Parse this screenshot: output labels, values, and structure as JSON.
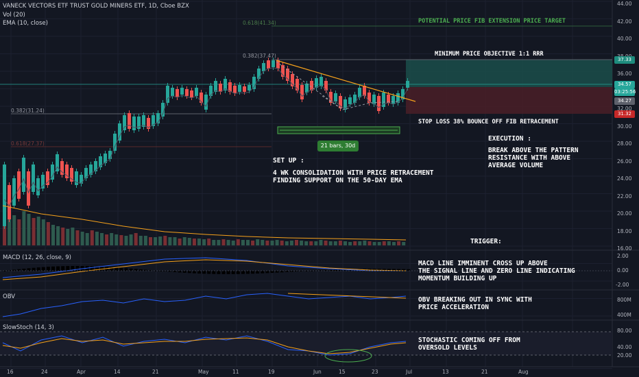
{
  "header": {
    "title": "VANECK VECTORS ETF TRUST GOLD MINERS ETF, 1D, Cboe BZX",
    "vol": "Vol (20)",
    "ema": "EMA (10, close)"
  },
  "fib": {
    "top": "0.618(41.34)",
    "r382": "0.382(37.47)",
    "lower382": "0.382(31.24)",
    "lower618": "0.618(27.37)"
  },
  "annotations": {
    "fib_target": "POTENTIAL PRICE FIB EXTENSION PRICE TARGET",
    "min_objective": "MINIMUM PRICE OBJECTIVE 1:1 RRR",
    "stop_loss": "STOP LOSS 38% BOUNCE OFF FIB RETRACEMENT",
    "bars_label": "21 bars, 30d",
    "execution": "EXECUTION :",
    "execution_text": "BREAK ABOVE THE PATTERN\nRESISTANCE WITH ABOVE\nAVERAGE VOLUME",
    "setup": "SET UP :",
    "setup_text": "4 WK CONSOLIDATION WITH PRICE RETRACEMENT\nFINDING SUPPORT ON THE 50-DAY EMA",
    "trigger": "TRIGGER:",
    "macd_text": "MACD LINE IMMINENT CROSS UP ABOVE\nTHE SIGNAL LINE AND ZERO LINE INDICATING\nMOMENTUM BUILDING UP",
    "obv_text": "OBV BREAKING OUT IN SYNC WITH\nPRICE ACCELERATION",
    "stoch_text": "STOCHASTIC COMING OFF FROM\nOVERSOLD LEVELS"
  },
  "price_axis": {
    "ticks": [
      "44.00",
      "42.00",
      "40.00",
      "38.00",
      "36.00",
      "34.00",
      "32.00",
      "30.00",
      "28.00",
      "26.00",
      "24.00",
      "22.00",
      "20.00",
      "18.00",
      "16.00"
    ],
    "badges": {
      "target": "37.33",
      "current": "34.57",
      "countdown": "03:25:56",
      "ema": "34.27",
      "stop": "31.32"
    }
  },
  "panes": {
    "macd": {
      "label": "MACD (12, 26, close, 9)",
      "ticks": [
        "2.00",
        "0.00",
        "-2.00"
      ]
    },
    "obv": {
      "label": "OBV",
      "ticks": [
        "800M",
        "400M"
      ]
    },
    "stoch": {
      "label": "SlowStoch (14, 3)",
      "ticks": [
        "80.00",
        "40.00",
        "20.00"
      ]
    }
  },
  "time_axis": [
    "16",
    "24",
    "Apr",
    "14",
    "21",
    "May",
    "11",
    "19",
    "Jun",
    "15",
    "23",
    "Jul",
    "13",
    "21",
    "Aug"
  ],
  "colors": {
    "bg": "#131722",
    "up": "#26a69a",
    "down": "#ef5350",
    "vol_up": "#2e5a4e",
    "vol_down": "#7a2e33",
    "ema": "#f7a21b",
    "target_zone": "#1b4d4a",
    "stop_zone": "#4a1f27",
    "annotation_green": "#4caf50"
  }
}
